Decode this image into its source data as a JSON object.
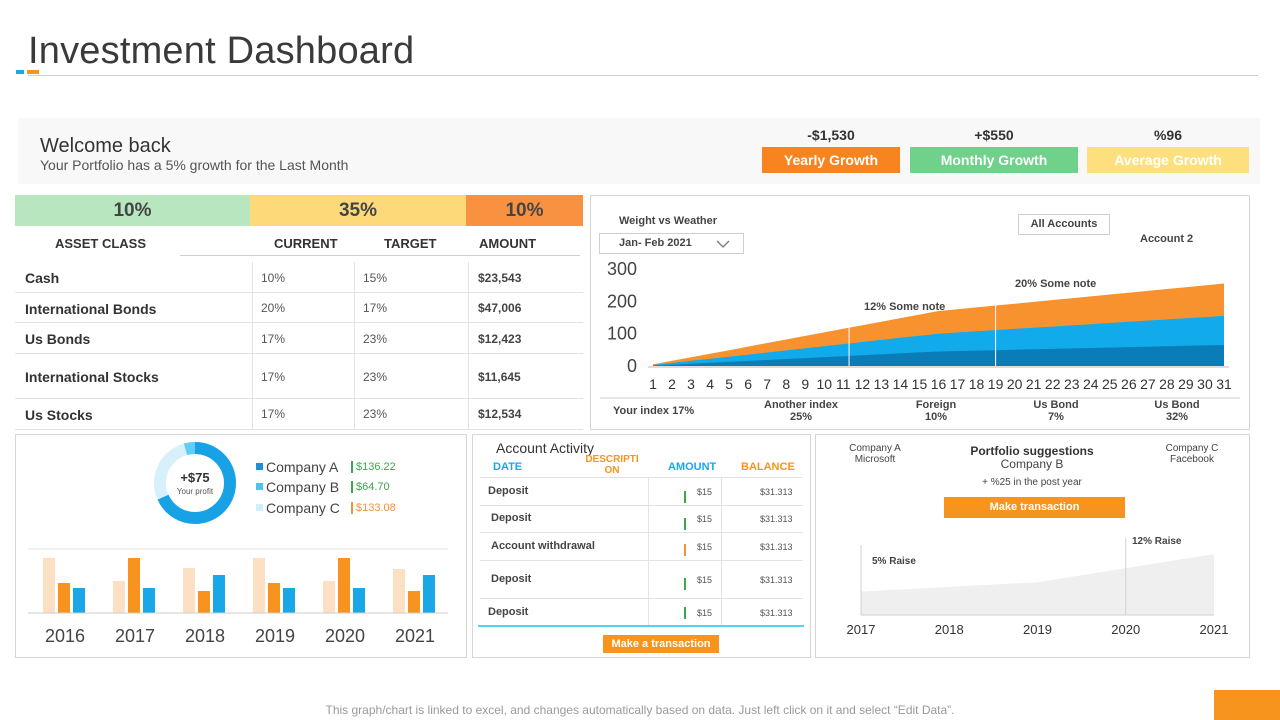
{
  "header": {
    "title": "Investment Dashboard"
  },
  "welcome": {
    "title": "Welcome back",
    "subtitle": "Your Portfolio has a 5% growth for the Last Month",
    "kpis": [
      {
        "value": "-$1,530",
        "label": "Yearly Growth",
        "color": "#f7841f"
      },
      {
        "value": "+$550",
        "label": "Monthly Growth",
        "color": "#6fd18a"
      },
      {
        "value": "%96",
        "label": "Average Growth",
        "color": "#fde07d"
      }
    ]
  },
  "asset_table": {
    "bars": [
      {
        "label": "10%",
        "color": "#b8e6bf"
      },
      {
        "label": "35%",
        "color": "#fdd97a"
      },
      {
        "label": "10%",
        "color": "#f89240"
      }
    ],
    "headers": {
      "asset": "ASSET CLASS",
      "current": "CURRENT",
      "target": "TARGET",
      "amount": "AMOUNT"
    },
    "rows": [
      {
        "name": "Cash",
        "current": "10%",
        "target": "15%",
        "amount": "$23,543"
      },
      {
        "name": "International Bonds",
        "current": "20%",
        "target": "17%",
        "amount": "$47,006"
      },
      {
        "name": "Us Bonds",
        "current": "17%",
        "target": "23%",
        "amount": "$12,423"
      },
      {
        "name": "International Stocks",
        "current": "17%",
        "target": "23%",
        "amount": "$11,645"
      },
      {
        "name": "Us Stocks",
        "current": "17%",
        "target": "23%",
        "amount": "$12,534"
      }
    ]
  },
  "weather_chart": {
    "title": "Weight vs Weather",
    "range_select": "Jan- Feb 2021",
    "accounts_button": "All Accounts",
    "account_label": "Account 2",
    "note1": "12% Some note",
    "note2": "20% Some note",
    "your_index": "Your index 17%",
    "footer_items": [
      {
        "name": "Another index",
        "value": "25%"
      },
      {
        "name": "Foreign",
        "value": "10%"
      },
      {
        "name": "Us Bond",
        "value": "7%"
      },
      {
        "name": "Us Bond",
        "value": "32%"
      }
    ],
    "chart_data": {
      "type": "area",
      "x": [
        1,
        2,
        3,
        4,
        5,
        6,
        7,
        8,
        9,
        10,
        11,
        12,
        13,
        14,
        15,
        16,
        17,
        18,
        19,
        20,
        21,
        22,
        23,
        24,
        25,
        26,
        27,
        28,
        29,
        30,
        31
      ],
      "y_ticks": [
        "300",
        "200",
        "100",
        "0"
      ],
      "ylim": [
        0,
        300
      ],
      "series": [
        {
          "name": "top",
          "color": "#f7922f",
          "start": 5,
          "mid": 170,
          "end": 255
        },
        {
          "name": "middle",
          "color": "#11aaeb",
          "start": 3,
          "mid": 100,
          "end": 155
        },
        {
          "name": "bottom",
          "color": "#0a7db8",
          "start": 1,
          "mid": 45,
          "end": 65
        }
      ],
      "note_positions_x": [
        11.3,
        19
      ]
    }
  },
  "company_panel": {
    "donut_value": "+$75",
    "donut_label": "Your profit",
    "donut_colors": [
      "#17a2e6",
      "#5fcdf5",
      "#d7f0fc"
    ],
    "legend": [
      {
        "name": "Company A",
        "value": "$136.22",
        "color": "#1e8fd6",
        "value_color": "#3aa84a"
      },
      {
        "name": "Company B",
        "value": "$64.70",
        "color": "#4fc3f0",
        "value_color": "#3aa84a"
      },
      {
        "name": "Company C",
        "value": "$133.08",
        "color": "#d3eefb",
        "value_color": "#f2913c"
      }
    ],
    "chart_data": {
      "type": "bar",
      "categories": [
        "2016",
        "2017",
        "2018",
        "2019",
        "2020",
        "2021"
      ],
      "series": [
        {
          "name": "series1",
          "color": "#fde0c4",
          "values": [
            55,
            32,
            45,
            55,
            32,
            44
          ]
        },
        {
          "name": "series2",
          "color": "#f7931e",
          "values": [
            30,
            55,
            22,
            30,
            55,
            22
          ]
        },
        {
          "name": "series3",
          "color": "#1aa7e8",
          "values": [
            25,
            25,
            38,
            25,
            25,
            38
          ]
        }
      ],
      "ylim": [
        0,
        60
      ]
    }
  },
  "activity": {
    "title": "Account Activity",
    "headers": {
      "date": "DATE",
      "description": "DESCRIPTI ON",
      "amount": "AMOUNT",
      "balance": "BALANCE"
    },
    "rows": [
      {
        "label": "Deposit",
        "mark_color": "#3aa84a",
        "amount": "$15",
        "balance": "$31.313"
      },
      {
        "label": "Deposit",
        "mark_color": "#3aa84a",
        "amount": "$15",
        "balance": "$31.313"
      },
      {
        "label": "Account withdrawal",
        "mark_color": "#f2913c",
        "amount": "$15",
        "balance": "$31.313"
      },
      {
        "label": "Deposit",
        "mark_color": "#3aa84a",
        "amount": "$15",
        "balance": "$31.313"
      },
      {
        "label": "Deposit",
        "mark_color": "#3aa84a",
        "amount": "$15",
        "balance": "$31.313"
      }
    ],
    "button": "Make a transaction"
  },
  "suggestions": {
    "company_a": "Company A",
    "company_a_sub": "Microsoft",
    "title": "Portfolio suggestions",
    "company_b": "Company B",
    "company_c": "Company C",
    "company_c_sub": "Facebook",
    "growth_note": "+ %25 in the post year",
    "button": "Make transaction",
    "raise1": "5% Raise",
    "raise2": "12% Raise",
    "chart_data": {
      "type": "area",
      "x": [
        "2017",
        "2018",
        "2019",
        "2020",
        "2021"
      ],
      "values": [
        25,
        30,
        35,
        50,
        65
      ],
      "ylim": [
        0,
        80
      ]
    }
  },
  "footer": {
    "note": "This graph/chart is linked to excel, and changes automatically based on data. Just left click on it and select “Edit Data”."
  }
}
